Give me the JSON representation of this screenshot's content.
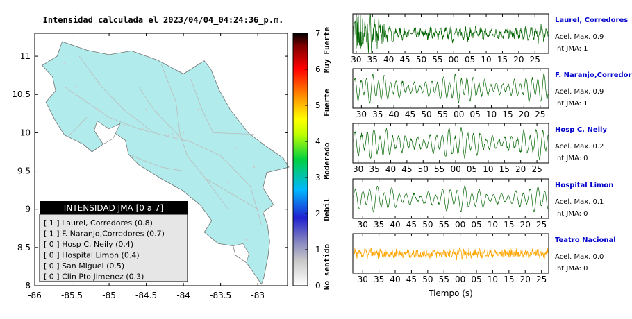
{
  "map_title": "Intensidad calculada el 2023/04/04_04:24:36_p.m.",
  "legend": {
    "title": "INTENSIDAD JMA [0 a 7]",
    "items": [
      "[ 1 ]  Laurel, Corredores (0.8)",
      "[ 1 ]  F. Naranjo,Corredores (0.7)",
      "[ 0 ]  Hosp C. Neily (0.4)",
      "[ 0 ]  Hospital Limon (0.4)",
      "[ 0 ]  San Miguel (0.5)",
      "[ 0 ]  Clin Pto Jimenez (0.3)"
    ]
  },
  "colorbar": {
    "ticks": [
      "0",
      "1",
      "2",
      "3",
      "4",
      "5",
      "6",
      "7"
    ],
    "labels": [
      "No sentido",
      "Debil",
      "Moderado",
      "Fuerte",
      "Muy Fuerte"
    ]
  },
  "stations": [
    {
      "name": "Laurel, Corredores",
      "acel": "Acel. Max. 0.9",
      "int": "Int JMA: 1",
      "color": "#006400",
      "ticks": [
        "30",
        "35",
        "40",
        "45",
        "50",
        "55",
        "00",
        "05",
        "10",
        "15",
        "20",
        "25"
      ],
      "t0": 29.6,
      "noise": 0.6,
      "period": 2.9,
      "amp": 0.32,
      "env": "burst"
    },
    {
      "name": "F. Naranjo,Corredores",
      "acel": "Acel. Max. 0.9",
      "int": "Int JMA: 1",
      "color": "#006400",
      "ticks": [
        "30",
        "35",
        "40",
        "45",
        "50",
        "55",
        "00",
        "05",
        "10",
        "15",
        "20",
        "25",
        "30"
      ],
      "t0": 28.0,
      "noise": 0.14,
      "period": 3.4,
      "amp": 0.6,
      "env": "flat"
    },
    {
      "name": "Hosp C. Neily",
      "acel": "Acel. Max. 0.2",
      "int": "Int JMA: 0",
      "color": "#006400",
      "ticks": [
        "30",
        "35",
        "40",
        "45",
        "50",
        "55",
        "00",
        "05",
        "10",
        "15",
        "20",
        "25"
      ],
      "t0": 29.0,
      "noise": 0.18,
      "period": 3.6,
      "amp": 0.65,
      "env": "flat"
    },
    {
      "name": "Hospital Limon",
      "acel": "Acel. Max. 0.1",
      "int": "Int JMA: 0",
      "color": "#006400",
      "ticks": [
        "30",
        "35",
        "40",
        "45",
        "50",
        "55",
        "00",
        "05",
        "10",
        "15",
        "20",
        "25"
      ],
      "t0": 27.6,
      "noise": 0.1,
      "period": 4.2,
      "amp": 0.55,
      "env": "flat"
    },
    {
      "name": "Teatro Nacional",
      "acel": "Acel. Max. 0.0",
      "int": "Int JMA: 0",
      "color": "#ffa500",
      "ticks": [
        "30",
        "35",
        "40",
        "45",
        "50",
        "55",
        "00",
        "05",
        "10",
        "15",
        "20",
        "25"
      ],
      "t0": 27.6,
      "noise": 0.45,
      "period": 3.0,
      "amp": 0.12,
      "env": "flat"
    }
  ],
  "chart_data": {
    "type": "scatter",
    "xlabel": "",
    "ylabel": "",
    "xlim": [
      -86,
      -82.6
    ],
    "ylim": [
      8,
      11.3
    ],
    "x_ticks": [
      "-86",
      "-85.5",
      "-85",
      "-84.5",
      "-84",
      "-83.5",
      "-83"
    ],
    "y_ticks": [
      "8",
      "8.5",
      "9",
      "9.5",
      "10",
      "10.5",
      "11"
    ],
    "map_fill_color": "#b2ebeb",
    "seismogram_xlabel": "Tiempo (s)"
  }
}
